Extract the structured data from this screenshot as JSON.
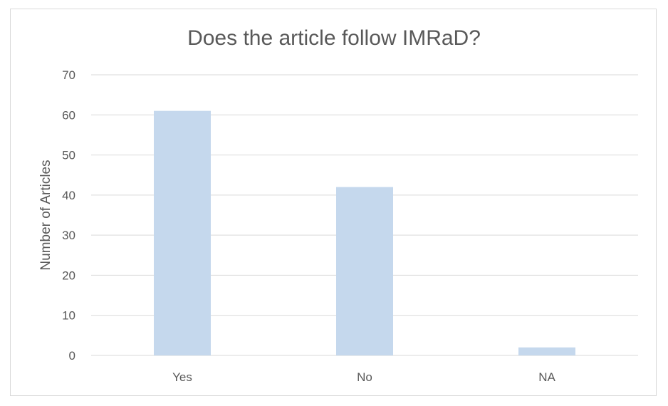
{
  "chart_data": {
    "type": "bar",
    "title": "Does the article follow IMRaD?",
    "xlabel": "",
    "ylabel": "Number of Articles",
    "categories": [
      "Yes",
      "No",
      "NA"
    ],
    "values": [
      61,
      42,
      2
    ],
    "ylim": [
      0,
      70
    ],
    "yticks": [
      0,
      10,
      20,
      30,
      40,
      50,
      60,
      70
    ],
    "grid": true,
    "legend": "none",
    "bar_color": "#c5d8ed",
    "grid_color": "#d9d9d9",
    "text_color": "#595959"
  }
}
